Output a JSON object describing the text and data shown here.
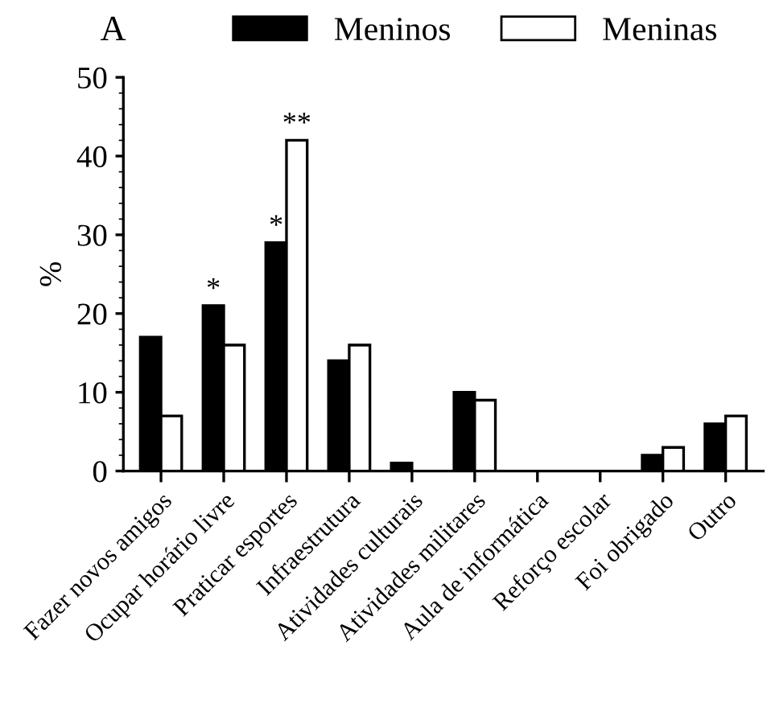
{
  "chart_data": {
    "type": "bar",
    "title": "A",
    "ylabel": "%",
    "categories": [
      "Fazer novos amigos",
      "Ocupar horário livre",
      "Praticar esportes",
      "Infraestrutura",
      "Atividades culturais",
      "Atividades militares",
      "Aula de informática",
      "Reforço escolar",
      "Foi obrigado",
      "Outro"
    ],
    "series": [
      {
        "name": "Meninos",
        "color": "#000000",
        "values": [
          17,
          21,
          29,
          14,
          1,
          10,
          0,
          0,
          2,
          6
        ]
      },
      {
        "name": "Meninas",
        "color": "#ffffff",
        "values": [
          7,
          16,
          42,
          16,
          0,
          9,
          0,
          0,
          3,
          7
        ]
      }
    ],
    "ylim": [
      0,
      50
    ],
    "yticks": [
      0,
      10,
      20,
      30,
      40,
      50
    ],
    "grid": false,
    "legend": "top",
    "annotations": [
      {
        "text": "*",
        "x": "Ocupar horário livre",
        "y": 21
      },
      {
        "text": "*",
        "x": "Praticar esportes",
        "y": 29
      },
      {
        "text": "**",
        "x": "Praticar esportes",
        "y": 42
      }
    ]
  }
}
